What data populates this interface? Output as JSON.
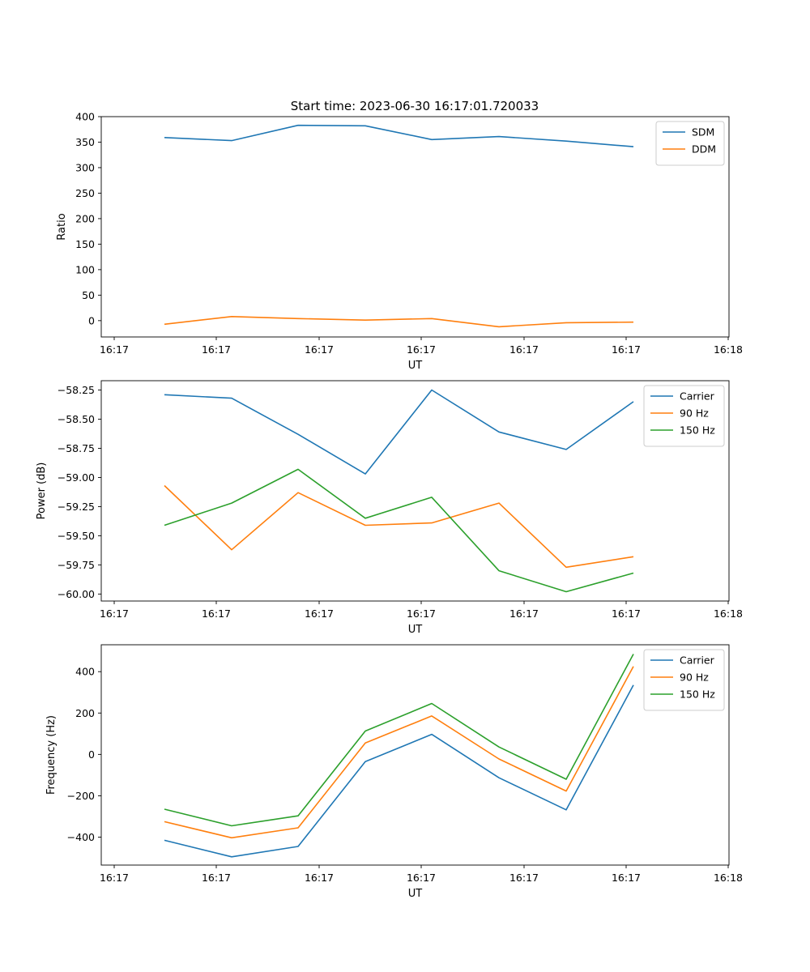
{
  "figure": {
    "title": "Start time: 2023-06-30 16:17:01.720033"
  },
  "chart_data": [
    {
      "type": "line",
      "xlabel": "UT",
      "ylabel": "Ratio",
      "xticks": [
        "16:17",
        "16:17",
        "16:17",
        "16:17",
        "16:17",
        "16:17",
        "16:18"
      ],
      "yticks": [
        0,
        50,
        100,
        150,
        200,
        250,
        300,
        350,
        400
      ],
      "ylim": [
        -32,
        400
      ],
      "legend": "top-right",
      "series": [
        {
          "name": "SDM",
          "color": "#1f77b4",
          "values": [
            359,
            353,
            383,
            382,
            355,
            361,
            352,
            341
          ]
        },
        {
          "name": "DDM",
          "color": "#ff7f0e",
          "values": [
            -7,
            8,
            4,
            1,
            4,
            -12,
            -4,
            -3
          ]
        }
      ]
    },
    {
      "type": "line",
      "xlabel": "UT",
      "ylabel": "Power (dB)",
      "xticks": [
        "16:17",
        "16:17",
        "16:17",
        "16:17",
        "16:17",
        "16:17",
        "16:18"
      ],
      "yticks": [
        -58.25,
        -58.5,
        -58.75,
        -59.0,
        -59.25,
        -59.5,
        -59.75,
        -60.0
      ],
      "ytick_labels": [
        "−58.25",
        "−58.50",
        "−58.75",
        "−59.00",
        "−59.25",
        "−59.50",
        "−59.75",
        "−60.00"
      ],
      "ylim": [
        -60.06,
        -58.17
      ],
      "legend": "top-right",
      "series": [
        {
          "name": "Carrier",
          "color": "#1f77b4",
          "values": [
            -58.29,
            -58.32,
            -58.63,
            -58.97,
            -58.25,
            -58.61,
            -58.76,
            -58.35
          ]
        },
        {
          "name": "90 Hz",
          "color": "#ff7f0e",
          "values": [
            -59.07,
            -59.62,
            -59.13,
            -59.41,
            -59.39,
            -59.22,
            -59.77,
            -59.68
          ]
        },
        {
          "name": "150 Hz",
          "color": "#2ca02c",
          "values": [
            -59.41,
            -59.22,
            -58.93,
            -59.35,
            -59.17,
            -59.8,
            -59.98,
            -59.82
          ]
        }
      ]
    },
    {
      "type": "line",
      "xlabel": "UT",
      "ylabel": "Frequency (Hz)",
      "xticks": [
        "16:17",
        "16:17",
        "16:17",
        "16:17",
        "16:17",
        "16:17",
        "16:18"
      ],
      "yticks": [
        -400,
        -200,
        0,
        200,
        400
      ],
      "ytick_labels": [
        "−400",
        "−200",
        "0",
        "200",
        "400"
      ],
      "ylim": [
        -535,
        530
      ],
      "legend": "top-right",
      "series": [
        {
          "name": "Carrier",
          "color": "#1f77b4",
          "values": [
            -415,
            -495,
            -445,
            -35,
            97,
            -113,
            -268,
            335
          ]
        },
        {
          "name": "90 Hz",
          "color": "#ff7f0e",
          "values": [
            -325,
            -403,
            -355,
            55,
            186,
            -22,
            -177,
            425
          ]
        },
        {
          "name": "150 Hz",
          "color": "#2ca02c",
          "values": [
            -265,
            -345,
            -297,
            113,
            246,
            36,
            -120,
            485
          ]
        }
      ]
    }
  ]
}
